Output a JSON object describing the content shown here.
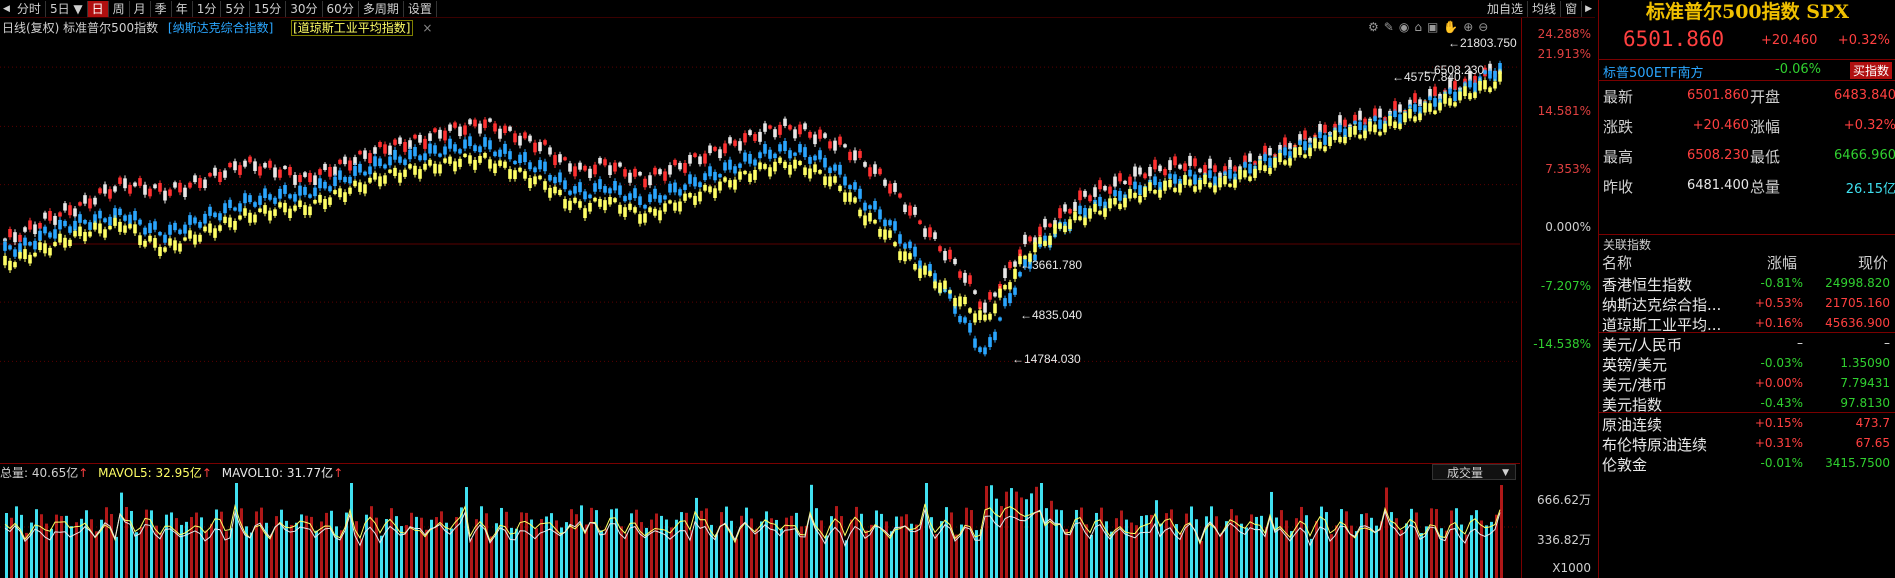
{
  "toolbar": {
    "periods": [
      "分时",
      "5日",
      "日",
      "周",
      "月",
      "季",
      "年",
      "1分",
      "5分",
      "15分",
      "30分",
      "60分",
      "多周期",
      "设置"
    ],
    "active_period": "日",
    "right_buttons": [
      "加自选",
      "均线",
      "窗"
    ]
  },
  "legend": {
    "main": "日线(复权)  标准普尔500指数",
    "overlay1": "[纳斯达克综合指数]",
    "overlay2": "[道琼斯工业平均指数]",
    "close_mark": "×"
  },
  "chart_labels": {
    "spx_high": "21803.750",
    "ndx_high": "6508.230",
    "dji_high": "45757.840",
    "low1": "3661.780",
    "low2": "4835.040",
    "low3": "14784.030"
  },
  "y_axis": [
    "24.288%",
    "21.913%",
    "14.581%",
    "7.353%",
    "0.000%",
    "-7.207%",
    "-14.538%"
  ],
  "volume": {
    "total_label": "总量: 40.65亿",
    "mavol5_label": "MAVOL5: 32.95亿",
    "mavol10_label": "MAVOL10: 31.77亿",
    "type_select": "成交量",
    "axis": [
      "666.62万",
      "336.82万",
      "X1000"
    ]
  },
  "panel": {
    "title": "标准普尔500指数 SPX",
    "price": "6501.860",
    "change": "+20.460",
    "change_pct": "+0.32%",
    "etf_name": "标普500ETF南方",
    "etf_pct": "-0.06%",
    "etf_button": "买指数",
    "quotes": [
      {
        "l1": "最新",
        "v1": "6501.860",
        "c1": "red",
        "l2": "开盘",
        "v2": "6483.840",
        "c2": "red"
      },
      {
        "l1": "涨跌",
        "v1": "+20.460",
        "c1": "red",
        "l2": "涨幅",
        "v2": "+0.32%",
        "c2": "red"
      },
      {
        "l1": "最高",
        "v1": "6508.230",
        "c1": "red",
        "l2": "最低",
        "v2": "6466.960",
        "c2": "green"
      },
      {
        "l1": "昨收",
        "v1": "6481.400",
        "c1": "white",
        "l2": "总量",
        "v2": "26.15亿",
        "c2": "cyan"
      }
    ],
    "related_header": "关联指数",
    "col_name": "名称",
    "col_pct": "涨幅",
    "col_price": "现价",
    "related": [
      {
        "name": "香港恒生指数",
        "pct": "-0.81%",
        "pc": "green",
        "price": "24998.820",
        "vc": "green"
      },
      {
        "name": "纳斯达克综合指...",
        "pct": "+0.53%",
        "pc": "red",
        "price": "21705.160",
        "vc": "red"
      },
      {
        "name": "道琼斯工业平均...",
        "pct": "+0.16%",
        "pc": "red",
        "price": "45636.900",
        "vc": "red"
      },
      {
        "name": "美元/人民币",
        "pct": "–",
        "pc": "white",
        "price": "–",
        "vc": "white"
      },
      {
        "name": "英镑/美元",
        "pct": "-0.03%",
        "pc": "green",
        "price": "1.35090",
        "vc": "green"
      },
      {
        "name": "美元/港币",
        "pct": "+0.00%",
        "pc": "red",
        "price": "7.79431",
        "vc": "green"
      },
      {
        "name": "美元指数",
        "pct": "-0.43%",
        "pc": "green",
        "price": "97.8130",
        "vc": "green"
      },
      {
        "name": "原油连续",
        "pct": "+0.15%",
        "pc": "red",
        "price": "473.7",
        "vc": "red"
      },
      {
        "name": "布伦特原油连续",
        "pct": "+0.31%",
        "pc": "red",
        "price": "67.65",
        "vc": "red"
      },
      {
        "name": "伦敦金",
        "pct": "-0.01%",
        "pc": "green",
        "price": "3415.7500",
        "vc": "green"
      }
    ]
  },
  "colors": {
    "up": "#ff4040",
    "down": "#30d030",
    "spx": "#e8e8e8",
    "ndx": "#2aa6ff",
    "dji": "#ffff66",
    "grid": "#7a0000"
  },
  "chart_data": {
    "type": "line",
    "title": "标准普尔500指数",
    "ylabel": "",
    "y_ticks": [
      "24.288%",
      "21.913%",
      "14.581%",
      "7.353%",
      "0.000%",
      "-7.207%",
      "-14.538%"
    ],
    "series": [
      {
        "name": "标准普尔500指数",
        "values": [
          0.5,
          1.5,
          3,
          4,
          5,
          6.5,
          7.5,
          7,
          6.5,
          7,
          8,
          9,
          10,
          9.5,
          9,
          8,
          9,
          10,
          11,
          12,
          12.5,
          13,
          14,
          14.5,
          15,
          14,
          13,
          12,
          10,
          9,
          10,
          9,
          8,
          9,
          10,
          11,
          12,
          13,
          14,
          14.5,
          14,
          13,
          12,
          10,
          8,
          5,
          2,
          -1,
          -4,
          -8,
          -4,
          0,
          2,
          4,
          6,
          7,
          8,
          9,
          9.5,
          10,
          9.5,
          9,
          10,
          11,
          12,
          13,
          14,
          15,
          15.5,
          16,
          17,
          18,
          19,
          20,
          21,
          22
        ]
      },
      {
        "name": "纳斯达克综合指数",
        "values": [
          -1,
          -0.5,
          1,
          2,
          2.5,
          3,
          3.5,
          2,
          1,
          2,
          3,
          4,
          5,
          5.5,
          6,
          6,
          7,
          8,
          9,
          10,
          10.5,
          11,
          11.5,
          12,
          12,
          11,
          10,
          9,
          7,
          6,
          7,
          6,
          5,
          6,
          7,
          8,
          9,
          10,
          11,
          11.5,
          11,
          10,
          8,
          5,
          3,
          0,
          -3,
          -6,
          -10,
          -14,
          -8,
          -3,
          0,
          2,
          4,
          5,
          6,
          7,
          7.5,
          8,
          8,
          8,
          9,
          10,
          11,
          12,
          13,
          14,
          14.5,
          15,
          16,
          17,
          18,
          19,
          20.5,
          21.9
        ]
      },
      {
        "name": "道琼斯工业平均指数",
        "values": [
          -3,
          -2,
          -1,
          0,
          1,
          1.5,
          2,
          0,
          -1,
          0,
          1,
          2,
          3,
          3.5,
          4,
          4,
          5,
          6,
          7,
          8,
          8.5,
          9,
          9.5,
          10,
          10,
          9,
          8,
          7,
          5,
          4,
          5,
          4,
          3,
          4,
          5,
          6,
          7,
          8,
          9,
          9.5,
          9,
          8,
          6,
          3,
          1,
          -2,
          -4,
          -6,
          -8,
          -10,
          -6,
          -2,
          0,
          2,
          3,
          4,
          5,
          6,
          6.5,
          7,
          7,
          7,
          8,
          9,
          10,
          11,
          12,
          13,
          13.5,
          14,
          15,
          16,
          17,
          18,
          19,
          20
        ]
      }
    ]
  }
}
